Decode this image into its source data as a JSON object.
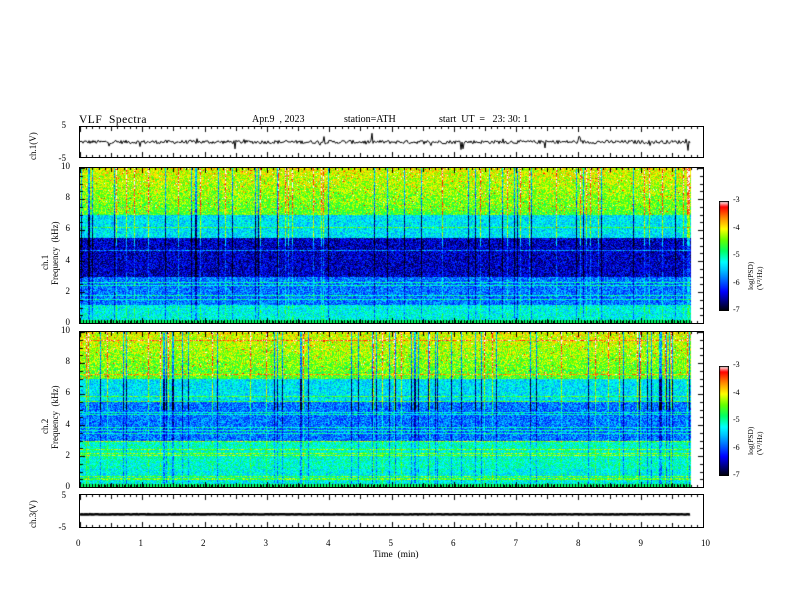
{
  "header": {
    "title": "VLF  Spectra",
    "date": "Apr.9  , 2023",
    "station": "station=ATH",
    "start": "start  UT  =   23: 30: 1"
  },
  "chart_data": [
    {
      "type": "line",
      "panel": "ch1-waveform",
      "ylabel": "ch.1(V)",
      "ylim": [
        -5,
        5
      ],
      "yticks": [
        "5",
        "-5"
      ],
      "xlim": [
        0,
        10
      ],
      "baseline": 0,
      "color": "#000000"
    },
    {
      "type": "heatmap",
      "panel": "ch1-spectrogram",
      "ylabel": "ch.1\nFrequency  (kHz)",
      "ylabel_line1": "ch.1",
      "ylabel_line2": "Frequency  (kHz)",
      "ylim": [
        0,
        10
      ],
      "yticks": [
        "10",
        "8",
        "6",
        "4",
        "2",
        "0"
      ],
      "xlim": [
        0,
        9.8
      ],
      "colorbar": {
        "label": "log(PSD)(V²/Hz)",
        "range": [
          -7,
          -3
        ],
        "ticks": [
          "-3",
          "-4",
          "-5",
          "-6",
          "-7"
        ]
      }
    },
    {
      "type": "heatmap",
      "panel": "ch2-spectrogram",
      "ylabel_line1": "ch.2",
      "ylabel_line2": "Frequency  (kHz)",
      "ylim": [
        0,
        10
      ],
      "yticks": [
        "10",
        "8",
        "6",
        "4",
        "2",
        "0"
      ],
      "xlim": [
        0,
        9.8
      ],
      "colorbar": {
        "label": "log(PSD)(V²/Hz)",
        "range": [
          -7,
          -3
        ],
        "ticks": [
          "-3",
          "-4",
          "-5",
          "-6",
          "-7"
        ]
      }
    },
    {
      "type": "line",
      "panel": "ch3-waveform",
      "ylabel": "ch.3(V)",
      "ylim": [
        -5,
        5
      ],
      "yticks": [
        "5",
        "-5"
      ],
      "xlim": [
        0,
        10
      ],
      "baseline": -1.2,
      "color": "#000000"
    }
  ],
  "xaxis": {
    "label": "Time  (min)",
    "ticks": [
      "0",
      "1",
      "2",
      "3",
      "4",
      "5",
      "6",
      "7",
      "8",
      "9",
      "10"
    ],
    "range": [
      0,
      10
    ]
  },
  "colors": {
    "colormap": [
      "#000000",
      "#000070",
      "#0000ff",
      "#00c8ff",
      "#00ffff",
      "#00ff64",
      "#64ff00",
      "#ffff00",
      "#ff8c00",
      "#ff0000",
      "#ffffff"
    ]
  }
}
